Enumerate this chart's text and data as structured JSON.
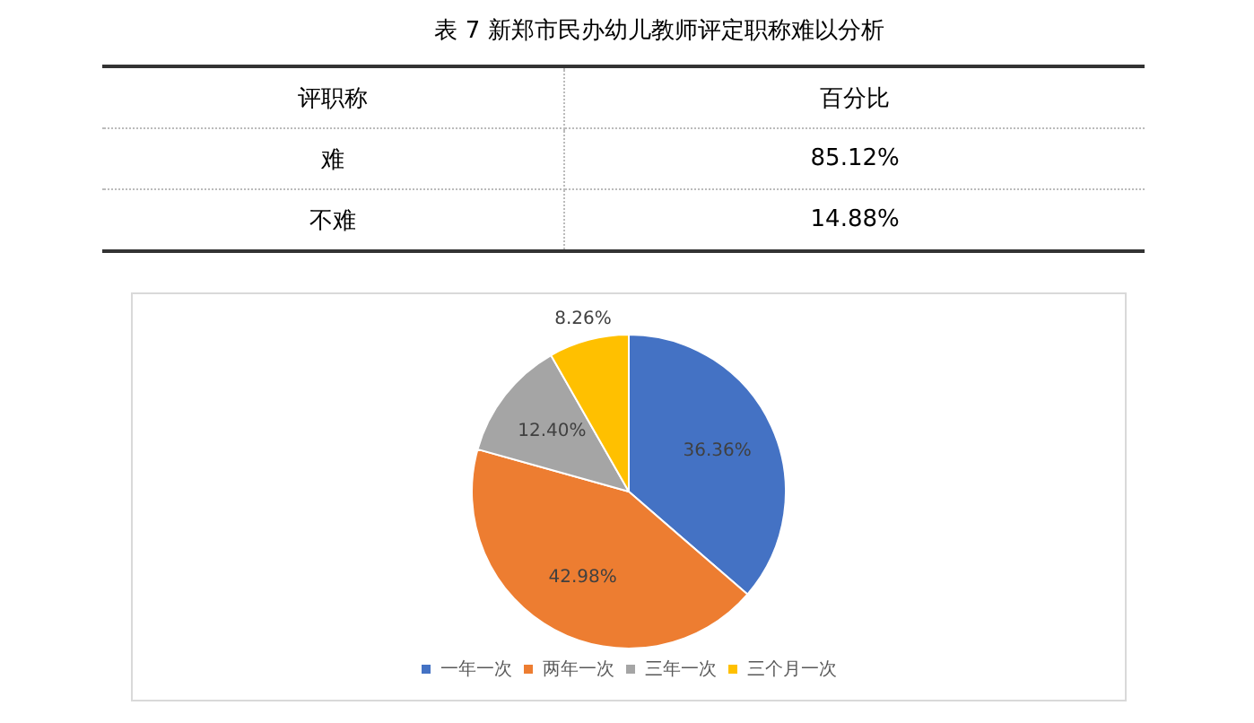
{
  "chart_data": [
    {
      "type": "other",
      "title": "表 7 新郑市民办幼儿教师评定职称难以分析",
      "annotations": [
        "评职称",
        "百分比"
      ],
      "categories": [
        "难",
        "不难"
      ],
      "values": [
        85.12,
        14.88
      ],
      "value_labels": [
        "85.12%",
        "14.88%"
      ]
    },
    {
      "type": "pie",
      "categories": [
        "一年一次",
        "两年一次",
        "三年一次",
        "三个月一次"
      ],
      "values": [
        36.36,
        42.98,
        12.4,
        8.26
      ],
      "value_labels": [
        "36.36%",
        "42.98%",
        "12.40%",
        "8.26%"
      ],
      "colors": [
        "#4472c4",
        "#ed7d31",
        "#a5a5a5",
        "#ffc000"
      ],
      "legend": "bottom"
    }
  ]
}
